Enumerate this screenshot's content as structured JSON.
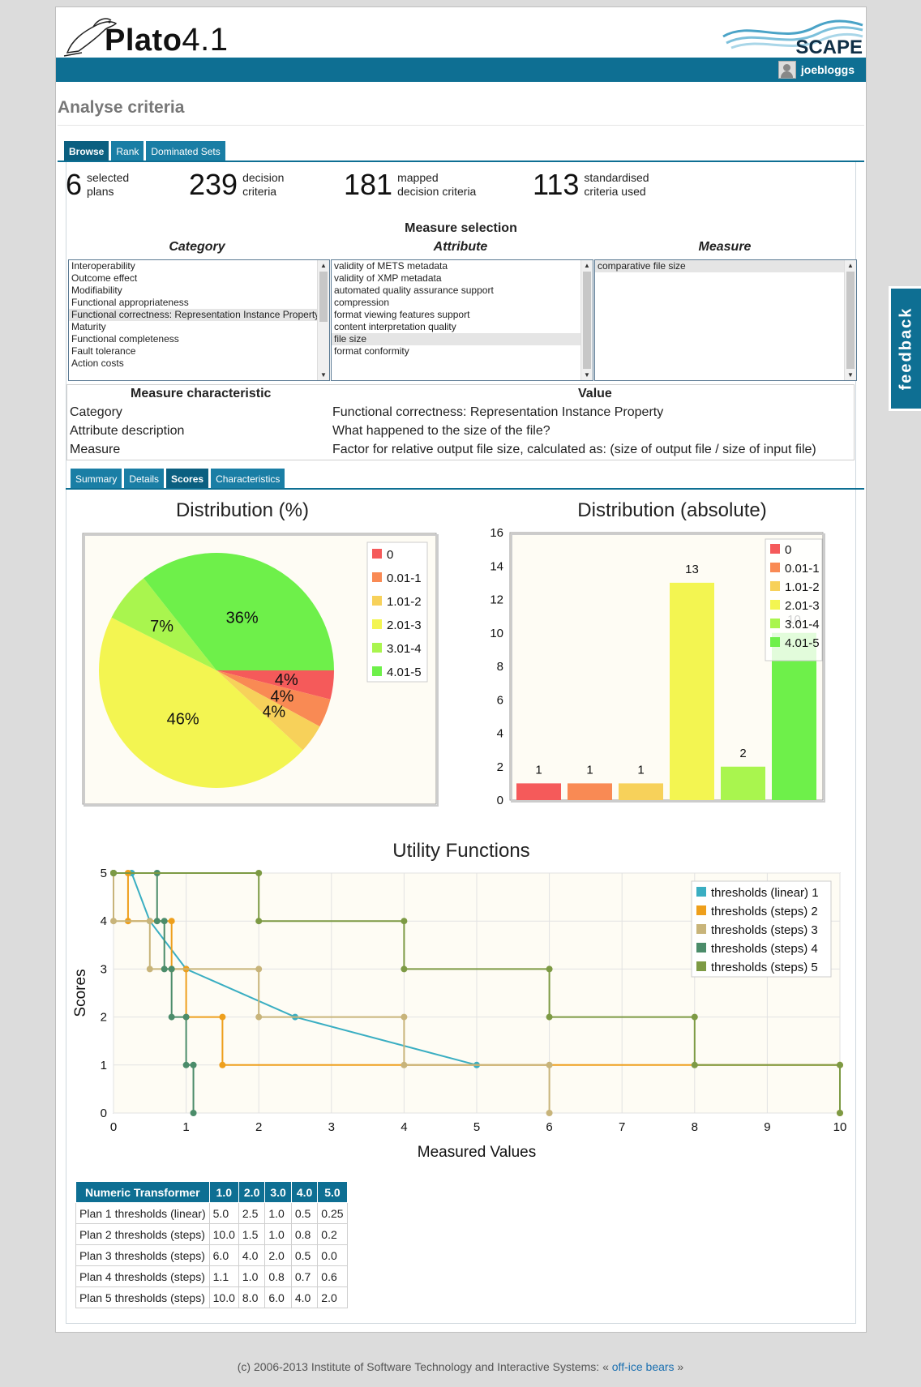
{
  "app": {
    "logo_name": "Plato",
    "logo_version": "4.1",
    "partner_logo": "SCAPE"
  },
  "user": {
    "name": "joebloggs"
  },
  "page_title": "Analyse criteria",
  "tabs": [
    {
      "label": "Browse",
      "active": true
    },
    {
      "label": "Rank",
      "active": false
    },
    {
      "label": "Dominated Sets",
      "active": false
    }
  ],
  "stats": [
    {
      "value": "6",
      "line1": "selected",
      "line2": "plans"
    },
    {
      "value": "239",
      "line1": "decision",
      "line2": "criteria"
    },
    {
      "value": "181",
      "line1": "mapped",
      "line2": "decision criteria"
    },
    {
      "value": "113",
      "line1": "standardised",
      "line2": "criteria used"
    }
  ],
  "measure_selection": {
    "title": "Measure selection",
    "category_header": "Category",
    "attribute_header": "Attribute",
    "measure_header": "Measure",
    "categories": [
      "Interoperability",
      "Outcome effect",
      "Modifiability",
      "Functional appropriateness",
      "Functional correctness: Representation Instance Property",
      "Maturity",
      "Functional completeness",
      "Fault tolerance",
      "Action costs"
    ],
    "selected_category": 4,
    "attributes": [
      "validity of METS metadata",
      "validity of XMP metadata",
      "automated quality assurance support",
      "compression",
      "format viewing features support",
      "content interpretation quality",
      "file size",
      "format conformity"
    ],
    "selected_attribute": 6,
    "measures": [
      "comparative file size"
    ],
    "selected_measure": 0
  },
  "measure_characteristic": {
    "header_left": "Measure characteristic",
    "header_right": "Value",
    "rows": [
      {
        "label": "Category",
        "value": "Functional correctness: Representation Instance Property"
      },
      {
        "label": "Attribute description",
        "value": "What happened to the size of the file?"
      },
      {
        "label": "Measure",
        "value": "Factor for relative output file size, calculated as: (size of output file / size of input file)"
      }
    ]
  },
  "subtabs": [
    {
      "label": "Summary",
      "active": false
    },
    {
      "label": "Details",
      "active": false
    },
    {
      "label": "Scores",
      "active": true
    },
    {
      "label": "Characteristics",
      "active": false
    }
  ],
  "legend_colors": [
    "#f55a5a",
    "#f98a54",
    "#f7d15a",
    "#f3f551",
    "#a9f54e",
    "#6ef04a"
  ],
  "legend_labels": [
    "0",
    "0.01-1",
    "1.01-2",
    "2.01-3",
    "3.01-4",
    "4.01-5"
  ],
  "chart_data": [
    {
      "type": "pie",
      "title": "Distribution (%)",
      "categories": [
        "0",
        "0.01-1",
        "1.01-2",
        "2.01-3",
        "3.01-4",
        "4.01-5"
      ],
      "values": [
        4,
        4,
        4,
        46,
        7,
        36
      ],
      "labels": [
        "4%",
        "4%",
        "4%",
        "46%",
        "7%",
        "36%"
      ]
    },
    {
      "type": "bar",
      "title": "Distribution (absolute)",
      "categories": [
        "0",
        "0.01-1",
        "1.01-2",
        "2.01-3",
        "3.01-4",
        "4.01-5"
      ],
      "values": [
        1,
        1,
        1,
        13,
        2,
        10
      ],
      "ylim": [
        0,
        16
      ],
      "yticks": [
        0,
        2,
        4,
        6,
        8,
        10,
        12,
        14,
        16
      ]
    },
    {
      "type": "line",
      "title": "Utility Functions",
      "xlabel": "Measured Values",
      "ylabel": "Scores",
      "xlim": [
        0,
        10
      ],
      "ylim": [
        0,
        5
      ],
      "xticks": [
        0,
        1,
        2,
        3,
        4,
        5,
        6,
        7,
        8,
        9,
        10
      ],
      "yticks": [
        0,
        1,
        2,
        3,
        4,
        5
      ],
      "series": [
        {
          "name": "thresholds (linear) 1",
          "color": "#3aaec2",
          "step": false,
          "points": [
            [
              0,
              5
            ],
            [
              0.25,
              5
            ],
            [
              0.5,
              4
            ],
            [
              1,
              3
            ],
            [
              2.5,
              2
            ],
            [
              5,
              1
            ]
          ]
        },
        {
          "name": "thresholds (steps) 2",
          "color": "#ee9f1c",
          "step": true,
          "thresholds": [
            10,
            1.5,
            1.0,
            0.8,
            0.2
          ]
        },
        {
          "name": "thresholds (steps) 3",
          "color": "#c8b47a",
          "step": true,
          "thresholds": [
            6.0,
            4.0,
            2.0,
            0.5,
            0.0
          ]
        },
        {
          "name": "thresholds (steps) 4",
          "color": "#4b8c6a",
          "step": true,
          "thresholds": [
            1.1,
            1.0,
            0.8,
            0.7,
            0.6
          ]
        },
        {
          "name": "thresholds (steps) 5",
          "color": "#7d9a44",
          "step": true,
          "thresholds": [
            10,
            8,
            6,
            4,
            2
          ]
        }
      ]
    }
  ],
  "numeric_transformer": {
    "headers": [
      "Numeric Transformer",
      "1.0",
      "2.0",
      "3.0",
      "4.0",
      "5.0"
    ],
    "rows": [
      [
        "Plan 1 thresholds (linear)",
        "5.0",
        "2.5",
        "1.0",
        "0.5",
        "0.25"
      ],
      [
        "Plan 2 thresholds (steps)",
        "10.0",
        "1.5",
        "1.0",
        "0.8",
        "0.2"
      ],
      [
        "Plan 3 thresholds (steps)",
        "6.0",
        "4.0",
        "2.0",
        "0.5",
        "0.0"
      ],
      [
        "Plan 4 thresholds (steps)",
        "1.1",
        "1.0",
        "0.8",
        "0.7",
        "0.6"
      ],
      [
        "Plan 5 thresholds (steps)",
        "10.0",
        "8.0",
        "6.0",
        "4.0",
        "2.0"
      ]
    ]
  },
  "footer": {
    "text": "(c) 2006-2013 Institute of Software Technology and Interactive Systems: « ",
    "link": "off-ice bears",
    "tail": " »"
  },
  "feedback_label": "feedback"
}
